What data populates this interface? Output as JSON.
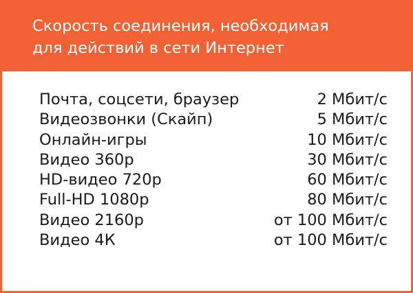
{
  "header": {
    "title_line1": "Скорость соединения, необходимая",
    "title_line2": "для действий в сети Интернет"
  },
  "colors": {
    "accent": "#f26134"
  },
  "rows": [
    {
      "activity": "Почта, соцсети, браузер",
      "speed": "2 Мбит/с"
    },
    {
      "activity": "Видеозвонки (Скайп)",
      "speed": "5 Мбит/с"
    },
    {
      "activity": "Онлайн-игры",
      "speed": "10 Мбит/с"
    },
    {
      "activity": "Видео 360p",
      "speed": "30 Мбит/с"
    },
    {
      "activity": "HD-видео 720p",
      "speed": "60 Мбит/с"
    },
    {
      "activity": "Full-HD 1080p",
      "speed": "80 Мбит/с"
    },
    {
      "activity": "Видео 2160p",
      "speed": "от 100 Мбит/с"
    },
    {
      "activity": "Видео 4К",
      "speed": "от 100 Мбит/с"
    }
  ]
}
